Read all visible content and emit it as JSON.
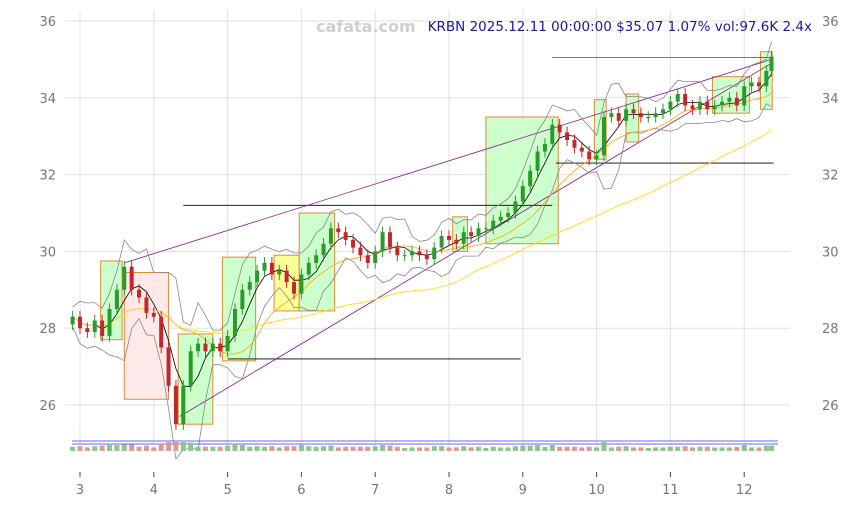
{
  "watermark": "cafata.com",
  "chart_data": {
    "type": "candlestick",
    "title": "KRBN 2025.12.11 00:00:00 $35.07 1.07% vol:97.6K 2.4x",
    "xlabel": "",
    "ylabel": "",
    "xlim": [
      2.85,
      12.45
    ],
    "ylim": [
      24.7,
      36.3
    ],
    "x_ticks": [
      3,
      4,
      5,
      6,
      7,
      8,
      9,
      10,
      11,
      12
    ],
    "y_ticks": [
      26,
      28,
      30,
      32,
      34,
      36
    ],
    "grid": true,
    "colors": {
      "up": "#2a9a2a",
      "down": "#c0282c",
      "ma_short": "#000000",
      "ma_mid": "#ffa500",
      "ma_long": "#ffd700",
      "band": "#888888",
      "trend": "#8b1a8b",
      "box_green": "#ccffcc",
      "box_pink": "#ffe8e8",
      "box_yellow": "#ffff99",
      "box_border": "#e08a3c",
      "volume_line": "#3333ff"
    },
    "closes": [
      [
        2.9,
        28.3
      ],
      [
        3.0,
        28.0
      ],
      [
        3.1,
        27.9
      ],
      [
        3.2,
        28.2
      ],
      [
        3.3,
        27.8
      ],
      [
        3.4,
        28.5
      ],
      [
        3.5,
        29.0
      ],
      [
        3.6,
        29.6
      ],
      [
        3.7,
        29.0
      ],
      [
        3.8,
        28.8
      ],
      [
        3.9,
        28.4
      ],
      [
        4.0,
        28.3
      ],
      [
        4.1,
        27.5
      ],
      [
        4.2,
        26.5
      ],
      [
        4.3,
        25.5
      ],
      [
        4.4,
        26.5
      ],
      [
        4.5,
        27.4
      ],
      [
        4.6,
        27.6
      ],
      [
        4.7,
        27.4
      ],
      [
        4.8,
        27.6
      ],
      [
        4.9,
        27.4
      ],
      [
        5.0,
        27.8
      ],
      [
        5.1,
        28.5
      ],
      [
        5.2,
        29.0
      ],
      [
        5.3,
        29.2
      ],
      [
        5.4,
        29.5
      ],
      [
        5.5,
        29.7
      ],
      [
        5.6,
        29.4
      ],
      [
        5.7,
        29.5
      ],
      [
        5.8,
        29.2
      ],
      [
        5.9,
        28.9
      ],
      [
        6.0,
        29.4
      ],
      [
        6.1,
        29.7
      ],
      [
        6.2,
        29.9
      ],
      [
        6.3,
        30.2
      ],
      [
        6.4,
        30.6
      ],
      [
        6.5,
        30.5
      ],
      [
        6.6,
        30.3
      ],
      [
        6.7,
        30.1
      ],
      [
        6.8,
        29.9
      ],
      [
        6.9,
        29.7
      ],
      [
        7.0,
        30.0
      ],
      [
        7.1,
        30.5
      ],
      [
        7.2,
        30.1
      ],
      [
        7.3,
        29.9
      ],
      [
        7.4,
        29.9
      ],
      [
        7.5,
        30.0
      ],
      [
        7.6,
        29.9
      ],
      [
        7.7,
        29.8
      ],
      [
        7.8,
        30.1
      ],
      [
        7.9,
        30.4
      ],
      [
        8.0,
        30.3
      ],
      [
        8.1,
        30.2
      ],
      [
        8.2,
        30.5
      ],
      [
        8.3,
        30.4
      ],
      [
        8.4,
        30.6
      ],
      [
        8.5,
        30.6
      ],
      [
        8.6,
        30.8
      ],
      [
        8.7,
        30.9
      ],
      [
        8.8,
        31.0
      ],
      [
        8.9,
        31.3
      ],
      [
        9.0,
        31.7
      ],
      [
        9.1,
        32.1
      ],
      [
        9.2,
        32.6
      ],
      [
        9.3,
        32.8
      ],
      [
        9.4,
        33.3
      ],
      [
        9.5,
        33.1
      ],
      [
        9.6,
        32.9
      ],
      [
        9.7,
        32.7
      ],
      [
        9.8,
        32.6
      ],
      [
        9.9,
        32.4
      ],
      [
        10.0,
        32.5
      ],
      [
        10.1,
        33.5
      ],
      [
        10.2,
        33.6
      ],
      [
        10.3,
        33.4
      ],
      [
        10.4,
        33.7
      ],
      [
        10.5,
        33.6
      ],
      [
        10.6,
        33.5
      ],
      [
        10.7,
        33.5
      ],
      [
        10.8,
        33.6
      ],
      [
        10.9,
        33.7
      ],
      [
        11.0,
        33.9
      ],
      [
        11.1,
        34.1
      ],
      [
        11.2,
        33.8
      ],
      [
        11.3,
        33.7
      ],
      [
        11.4,
        33.9
      ],
      [
        11.5,
        33.7
      ],
      [
        11.6,
        33.8
      ],
      [
        11.7,
        33.9
      ],
      [
        11.8,
        34.0
      ],
      [
        11.9,
        33.8
      ],
      [
        12.0,
        34.3
      ],
      [
        12.1,
        34.4
      ],
      [
        12.2,
        34.3
      ],
      [
        12.3,
        34.7
      ],
      [
        12.37,
        35.07
      ]
    ],
    "boxes": [
      {
        "x": [
          3.28,
          3.57
        ],
        "y": [
          27.7,
          29.75
        ],
        "kind": "green"
      },
      {
        "x": [
          3.6,
          4.2
        ],
        "y": [
          26.15,
          29.45
        ],
        "kind": "pink"
      },
      {
        "x": [
          4.33,
          4.8
        ],
        "y": [
          25.5,
          27.85
        ],
        "kind": "green"
      },
      {
        "x": [
          4.93,
          5.38
        ],
        "y": [
          27.15,
          29.85
        ],
        "kind": "green"
      },
      {
        "x": [
          5.63,
          5.97
        ],
        "y": [
          28.45,
          29.9
        ],
        "kind": "yellow"
      },
      {
        "x": [
          5.97,
          6.45
        ],
        "y": [
          28.45,
          31.0
        ],
        "kind": "green"
      },
      {
        "x": [
          8.05,
          8.25
        ],
        "y": [
          30.0,
          30.9
        ],
        "kind": "green"
      },
      {
        "x": [
          8.5,
          9.48
        ],
        "y": [
          30.2,
          33.5
        ],
        "kind": "green"
      },
      {
        "x": [
          9.97,
          10.13
        ],
        "y": [
          32.4,
          33.95
        ],
        "kind": "green"
      },
      {
        "x": [
          10.4,
          10.57
        ],
        "y": [
          32.85,
          34.1
        ],
        "kind": "green"
      },
      {
        "x": [
          11.57,
          12.07
        ],
        "y": [
          33.6,
          34.55
        ],
        "kind": "green"
      },
      {
        "x": [
          12.22,
          12.38
        ],
        "y": [
          33.7,
          35.2
        ],
        "kind": "green"
      }
    ],
    "levels": [
      {
        "x": [
          4.4,
          9.4
        ],
        "y": 31.2,
        "color": "#000000"
      },
      {
        "x": [
          5.0,
          8.97
        ],
        "y": 27.2,
        "color": "#000000"
      },
      {
        "x": [
          9.45,
          12.4
        ],
        "y": 32.3,
        "color": "#000000"
      },
      {
        "x": [
          9.4,
          12.4
        ],
        "y": 35.05,
        "color": "#3333ff"
      }
    ],
    "trendlines": [
      {
        "from": [
          3.6,
          29.7
        ],
        "to": [
          12.37,
          35.0
        ]
      },
      {
        "from": [
          4.35,
          25.7
        ],
        "to": [
          12.37,
          34.9
        ]
      }
    ]
  }
}
